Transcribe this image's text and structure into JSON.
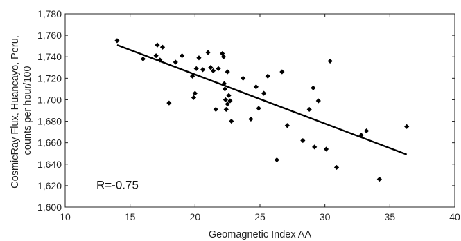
{
  "chart_data": {
    "type": "scatter",
    "title": "",
    "xlabel": "Geomagnetic Index AA",
    "ylabel": [
      "CosmicRay Flux, Huancayo, Peru,",
      "counts per hour/100"
    ],
    "xlim": [
      10,
      40
    ],
    "ylim": [
      1600,
      1780
    ],
    "xticks": [
      10,
      15,
      20,
      25,
      30,
      35,
      40
    ],
    "yticks": [
      1600,
      1620,
      1640,
      1660,
      1680,
      1700,
      1720,
      1740,
      1760,
      1780
    ],
    "ytick_labels": [
      "1,600",
      "1,620",
      "1,640",
      "1,660",
      "1,680",
      "1,700",
      "1,720",
      "1,740",
      "1,760",
      "1,780"
    ],
    "grid": false,
    "points": [
      {
        "x": 14.0,
        "y": 1755
      },
      {
        "x": 16.0,
        "y": 1738
      },
      {
        "x": 17.0,
        "y": 1741
      },
      {
        "x": 17.1,
        "y": 1751
      },
      {
        "x": 17.3,
        "y": 1737
      },
      {
        "x": 17.5,
        "y": 1749
      },
      {
        "x": 18.0,
        "y": 1697
      },
      {
        "x": 18.5,
        "y": 1735
      },
      {
        "x": 19.0,
        "y": 1741
      },
      {
        "x": 19.8,
        "y": 1722
      },
      {
        "x": 19.9,
        "y": 1702
      },
      {
        "x": 20.0,
        "y": 1706
      },
      {
        "x": 20.1,
        "y": 1729
      },
      {
        "x": 20.3,
        "y": 1739
      },
      {
        "x": 20.6,
        "y": 1728
      },
      {
        "x": 21.0,
        "y": 1744
      },
      {
        "x": 21.2,
        "y": 1730
      },
      {
        "x": 21.4,
        "y": 1727
      },
      {
        "x": 21.6,
        "y": 1691
      },
      {
        "x": 21.8,
        "y": 1729
      },
      {
        "x": 22.1,
        "y": 1743
      },
      {
        "x": 22.2,
        "y": 1740
      },
      {
        "x": 22.25,
        "y": 1715
      },
      {
        "x": 22.3,
        "y": 1710
      },
      {
        "x": 22.35,
        "y": 1700
      },
      {
        "x": 22.4,
        "y": 1691
      },
      {
        "x": 22.5,
        "y": 1726
      },
      {
        "x": 22.5,
        "y": 1696
      },
      {
        "x": 22.6,
        "y": 1704
      },
      {
        "x": 22.7,
        "y": 1699
      },
      {
        "x": 22.8,
        "y": 1680
      },
      {
        "x": 23.7,
        "y": 1720
      },
      {
        "x": 24.3,
        "y": 1682
      },
      {
        "x": 24.7,
        "y": 1712
      },
      {
        "x": 24.9,
        "y": 1692
      },
      {
        "x": 25.3,
        "y": 1706
      },
      {
        "x": 25.6,
        "y": 1722
      },
      {
        "x": 26.3,
        "y": 1644
      },
      {
        "x": 26.7,
        "y": 1726
      },
      {
        "x": 27.1,
        "y": 1676
      },
      {
        "x": 28.3,
        "y": 1662
      },
      {
        "x": 28.8,
        "y": 1691
      },
      {
        "x": 29.1,
        "y": 1711
      },
      {
        "x": 29.2,
        "y": 1656
      },
      {
        "x": 29.5,
        "y": 1699
      },
      {
        "x": 30.1,
        "y": 1654
      },
      {
        "x": 30.4,
        "y": 1736
      },
      {
        "x": 30.9,
        "y": 1637
      },
      {
        "x": 32.8,
        "y": 1667
      },
      {
        "x": 33.2,
        "y": 1671
      },
      {
        "x": 34.2,
        "y": 1626
      },
      {
        "x": 36.3,
        "y": 1675
      }
    ],
    "trendline": {
      "type": "linear",
      "x": [
        14.0,
        36.3
      ],
      "y": [
        1751,
        1649
      ]
    },
    "annotations": [
      {
        "text": "R=-0.75",
        "x": 12.4,
        "y": 1621
      }
    ]
  }
}
